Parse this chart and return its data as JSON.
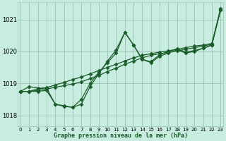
{
  "title": "Graphe pression niveau de la mer (hPa)",
  "background_color": "#c8ece0",
  "grid_color": "#a0c8b8",
  "line_color": "#1a5c2a",
  "marker": "D",
  "markersize": 2.5,
  "linewidth": 0.9,
  "xlim": [
    -0.3,
    23.3
  ],
  "ylim": [
    1017.65,
    1021.55
  ],
  "yticks": [
    1018,
    1019,
    1020,
    1021
  ],
  "xtick_labels": [
    "0",
    "1",
    "2",
    "3",
    "4",
    "5",
    "6",
    "7",
    "8",
    "9",
    "10",
    "11",
    "12",
    "13",
    "14",
    "15",
    "16",
    "17",
    "18",
    "19",
    "20",
    "21",
    "22",
    "23"
  ],
  "series": [
    [
      1018.75,
      1018.9,
      1018.85,
      1018.85,
      1018.35,
      1018.3,
      1018.25,
      1018.5,
      1019.0,
      1019.35,
      1019.65,
      1019.95,
      1020.6,
      1020.2,
      1019.75,
      1019.65,
      1019.85,
      1019.95,
      1020.05,
      1019.95,
      1020.0,
      1020.1,
      1020.2,
      1021.3
    ],
    [
      1018.75,
      1018.75,
      1018.83,
      1018.87,
      1018.95,
      1019.03,
      1019.12,
      1019.2,
      1019.3,
      1019.4,
      1019.5,
      1019.6,
      1019.7,
      1019.8,
      1019.88,
      1019.93,
      1019.98,
      1020.02,
      1020.07,
      1020.12,
      1020.17,
      1020.2,
      1020.25,
      1021.3
    ],
    [
      1018.75,
      1018.75,
      1018.78,
      1018.82,
      1018.88,
      1018.93,
      1018.98,
      1019.05,
      1019.15,
      1019.25,
      1019.37,
      1019.48,
      1019.6,
      1019.7,
      1019.8,
      1019.88,
      1019.93,
      1019.97,
      1020.02,
      1020.07,
      1020.12,
      1020.17,
      1020.22,
      1021.3
    ],
    [
      1018.75,
      1018.75,
      1018.75,
      1018.78,
      1018.35,
      1018.28,
      1018.25,
      1018.35,
      1018.9,
      1019.3,
      1019.7,
      1020.05,
      1020.6,
      1020.2,
      1019.75,
      1019.68,
      1019.9,
      1020.0,
      1020.08,
      1019.98,
      1020.03,
      1020.1,
      1020.2,
      1021.35
    ]
  ]
}
